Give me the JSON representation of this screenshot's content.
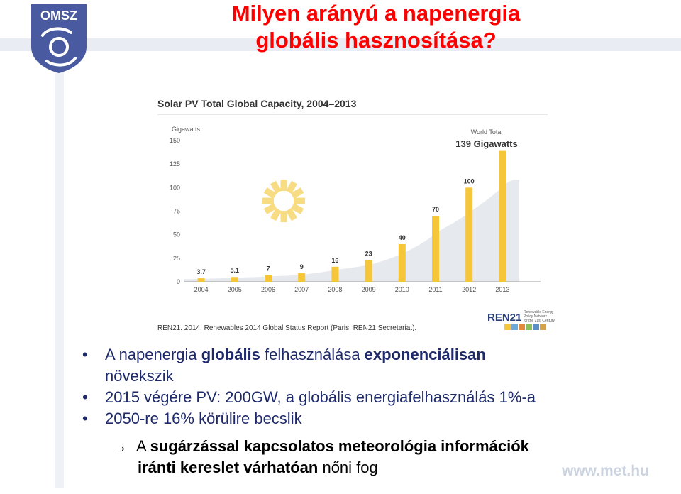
{
  "logo": {
    "text": "OMSZ",
    "icon": "omsz-cyclone-logo",
    "color": "#4a5aa0"
  },
  "slide": {
    "title_line1": "Milyen arányú a napenergia",
    "title_line2": "globális hasznosítása?",
    "title_color": "#ff0000",
    "text_color": "#1f2a6b",
    "footer_url": "www.met.hu"
  },
  "chart_data": {
    "type": "bar",
    "title": "Solar PV Total Global Capacity, 2004–2013",
    "ylabel": "Gigawatts",
    "categories": [
      "2004",
      "2005",
      "2006",
      "2007",
      "2008",
      "2009",
      "2010",
      "2011",
      "2012",
      "2013"
    ],
    "values": [
      3.7,
      5.1,
      7,
      9,
      16,
      23,
      40,
      70,
      100,
      139
    ],
    "value_labels": [
      "3.7",
      "5.1",
      "7",
      "9",
      "16",
      "23",
      "40",
      "70",
      "100",
      ""
    ],
    "y_ticks": [
      0,
      25,
      50,
      75,
      100,
      125,
      150
    ],
    "ylim": [
      0,
      150
    ],
    "callout_line1": "World Total",
    "callout_line2": "139 Gigawatts",
    "source": "REN21. 2014. Renewables 2014 Global Status Report (Paris: REN21 Secretariat).",
    "publisher_logo": "REN21",
    "publisher_tagline": [
      "Renewable Energy",
      "Policy Network",
      "for the 21st Century"
    ],
    "bar_color": "#f5c53a",
    "trend_fill": "#e6e9ee",
    "grid": false
  },
  "bullets": [
    {
      "parts": [
        {
          "text": "A napenergia ",
          "bold": false
        },
        {
          "text": "globális",
          "bold": true
        },
        {
          "text": " felhasználása ",
          "bold": false
        },
        {
          "text": "exponenciálisan",
          "bold": true
        }
      ]
    },
    {
      "parts": [
        {
          "text": "növekszik",
          "bold": false
        }
      ],
      "continuation": true
    },
    {
      "parts": [
        {
          "text": "2015 végére PV: 200GW, a globális energiafelhasználás 1%-a",
          "bold": false
        }
      ]
    },
    {
      "parts": [
        {
          "text": "2050-re 16% körülire becslik",
          "bold": false
        }
      ]
    }
  ],
  "conclusion": {
    "arrow": "→",
    "line1_prefix": "A ",
    "line1_bold": "sugárzással kapcsolatos meteorológia információk",
    "line2_bold": "iránti kereslet várhatóan",
    "line2_rest": " nőni fog"
  }
}
